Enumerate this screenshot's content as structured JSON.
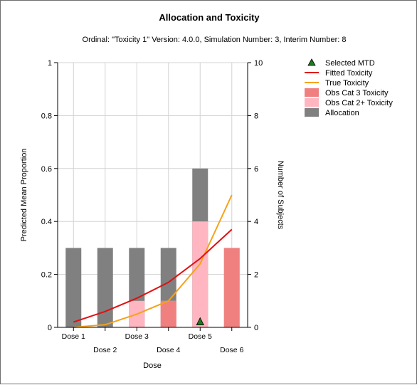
{
  "chart_data": {
    "type": "bar",
    "title": "Allocation and Toxicity",
    "subtitle": "Ordinal: \"Toxicity 1\" Version: 4.0.0, Simulation Number: 3, Interim Number: 8",
    "xlabel": "Dose",
    "ylabel_left": "Predicted Mean Proportion",
    "ylabel_right": "Number of Subjects",
    "categories": [
      "Dose 1",
      "Dose 2",
      "Dose 3",
      "Dose 4",
      "Dose 5",
      "Dose 6"
    ],
    "ylim_left": [
      0,
      1
    ],
    "ylim_right": [
      0,
      10
    ],
    "yticks_left": [
      "0",
      "0.2",
      "0.4",
      "0.6",
      "0.8",
      "1"
    ],
    "yticks_right": [
      "0",
      "2",
      "4",
      "6",
      "8",
      "10"
    ],
    "grid": true,
    "legend_position": "right",
    "bars": {
      "allocation": [
        3,
        3,
        3,
        3,
        6,
        0
      ],
      "obs_cat2plus": [
        0,
        0,
        1,
        1,
        4,
        3
      ],
      "obs_cat3": [
        0,
        0,
        0,
        1,
        0,
        3
      ]
    },
    "lines": {
      "fitted_toxicity": [
        0.02,
        0.06,
        0.11,
        0.17,
        0.26,
        0.37
      ],
      "true_toxicity": [
        0.0,
        0.01,
        0.05,
        0.1,
        0.24,
        0.5
      ]
    },
    "selected_mtd": {
      "category": "Dose 5",
      "value": 0.02
    },
    "legend": [
      {
        "key": "selected_mtd",
        "label": "Selected MTD",
        "kind": "marker",
        "color": "#1e7b1e"
      },
      {
        "key": "fitted_toxicity",
        "label": "Fitted Toxicity",
        "kind": "line",
        "color": "#e01010"
      },
      {
        "key": "true_toxicity",
        "label": "True Toxicity",
        "kind": "line",
        "color": "#f5a21a"
      },
      {
        "key": "obs_cat3",
        "label": "Obs Cat 3 Toxicity",
        "kind": "box",
        "color": "#f08080"
      },
      {
        "key": "obs_cat2plus",
        "label": "Obs Cat 2+ Toxicity",
        "kind": "box",
        "color": "#ffb6c1"
      },
      {
        "key": "allocation",
        "label": "Allocation",
        "kind": "box",
        "color": "#808080"
      }
    ]
  }
}
